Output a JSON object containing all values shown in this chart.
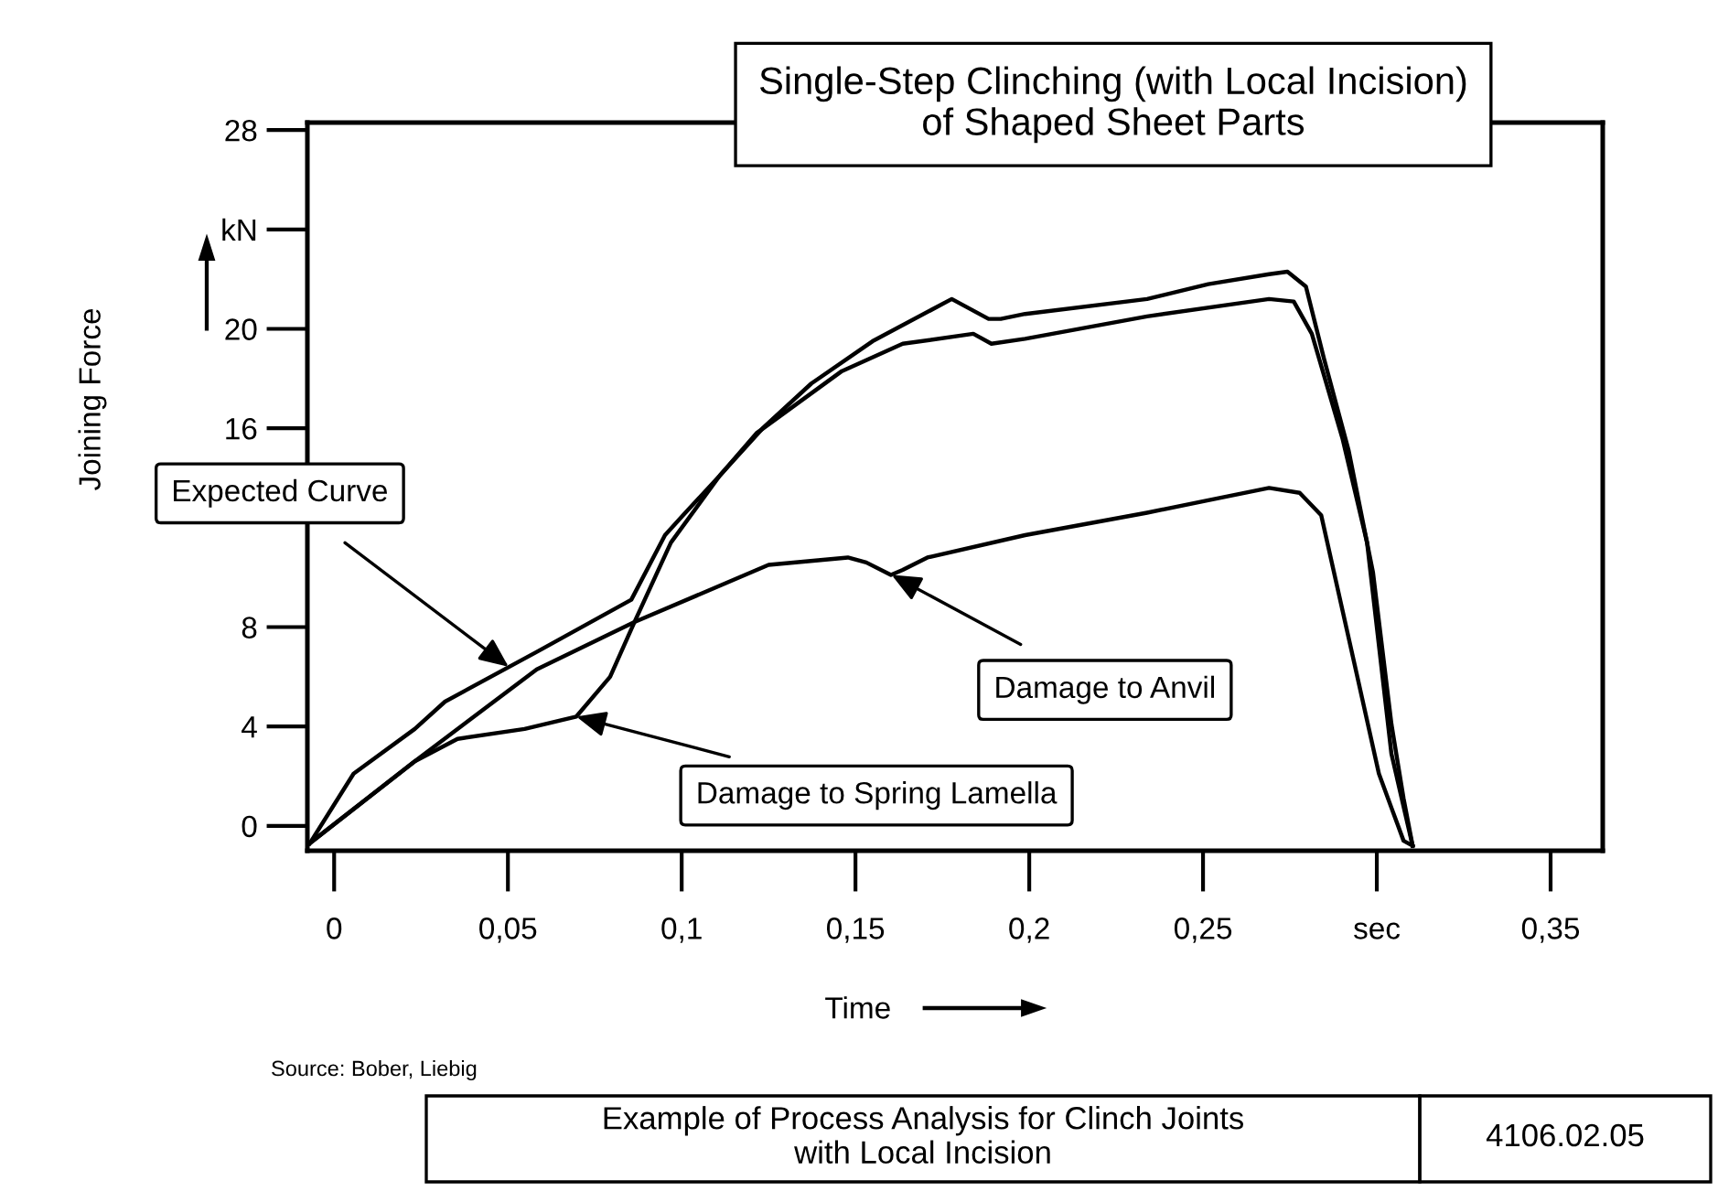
{
  "chart_data": {
    "type": "line",
    "title": "Single-Step Clinching (with Local Incision)\nof Shaped Sheet Parts",
    "xlabel": "Time",
    "ylabel": "Joining Force",
    "series": [
      {
        "color": "#000000",
        "x": [
          -0.007,
          0.0056,
          0.0232,
          0.0319,
          0.0583,
          0.0855,
          0.0952,
          0.1004,
          0.111,
          0.1215,
          0.1461,
          0.1636,
          0.1839,
          0.1891,
          0.1988,
          0.2339,
          0.269,
          0.2761,
          0.2813,
          0.2901,
          0.2972,
          0.3042,
          0.3103
        ],
        "values": [
          -0.7,
          2.1,
          3.9,
          5.0,
          7.0,
          9.1,
          11.7,
          12.5,
          14.1,
          15.8,
          18.3,
          19.4,
          19.8,
          19.4,
          19.6,
          20.5,
          21.2,
          21.1,
          19.8,
          15.6,
          11.4,
          2.9,
          -0.8
        ]
      },
      {
        "color": "#000000",
        "x": [
          -0.007,
          0.0232,
          0.0355,
          0.0548,
          0.0697,
          0.0794,
          0.0864,
          0.0969,
          0.111,
          0.1233,
          0.1373,
          0.1549,
          0.1777,
          0.1883,
          0.1918,
          0.1988,
          0.2339,
          0.2515,
          0.269,
          0.2743,
          0.2796,
          0.2848,
          0.2919,
          0.2989,
          0.3042,
          0.3077,
          0.3103
        ],
        "values": [
          -0.7,
          2.6,
          3.5,
          3.9,
          4.4,
          6.0,
          8.2,
          11.4,
          14.1,
          16.0,
          17.8,
          19.5,
          21.2,
          20.4,
          20.4,
          20.6,
          21.2,
          21.8,
          22.2,
          22.3,
          21.7,
          18.8,
          15.1,
          10.2,
          4.1,
          1.1,
          -0.8
        ]
      },
      {
        "color": "#000000",
        "x": [
          -0.007,
          0.0232,
          0.0583,
          0.0864,
          0.125,
          0.1478,
          0.1531,
          0.1602,
          0.1636,
          0.1707,
          0.1988,
          0.2339,
          0.2515,
          0.269,
          0.2778,
          0.284,
          0.2936,
          0.3006,
          0.3077,
          0.3103
        ],
        "values": [
          -0.7,
          2.6,
          6.3,
          8.2,
          10.5,
          10.8,
          10.6,
          10.1,
          10.3,
          10.8,
          11.7,
          12.6,
          13.1,
          13.6,
          13.4,
          12.5,
          6.5,
          2.1,
          -0.6,
          -0.8
        ]
      }
    ],
    "xlim": [
      -0.0077,
      0.365
    ],
    "ylim": [
      -1,
      28.3
    ],
    "xticks": [
      0,
      {
        "value": 0.05,
        "label": "0,05"
      },
      {
        "value": 0.1,
        "label": "0,1"
      },
      {
        "value": 0.15,
        "label": "0,15"
      },
      {
        "value": 0.2,
        "label": "0,2"
      },
      {
        "value": 0.25,
        "label": "0,25"
      },
      {
        "value": 0.3,
        "label": "sec"
      },
      {
        "value": 0.35,
        "label": "0,35"
      }
    ],
    "yticks": [
      0,
      4,
      8,
      16,
      20,
      {
        "value": 24,
        "label": "kN"
      },
      28
    ],
    "grid": false,
    "legend": false,
    "marker": "none",
    "line_style": "solid",
    "annotations": [
      {
        "text": "Expected Curve",
        "x": 0.0502,
        "y": 6.4
      },
      {
        "text": "Damage to Spring Lamella",
        "x": 0.0697,
        "y": 4.4
      },
      {
        "text": "Damage to Anvil",
        "x": 0.1604,
        "y": 10.1
      },
      "Source: Bober, Liebig",
      "Example of Process Analysis for Clinch Joints\nwith Local Incision",
      "4106.02.05"
    ]
  }
}
